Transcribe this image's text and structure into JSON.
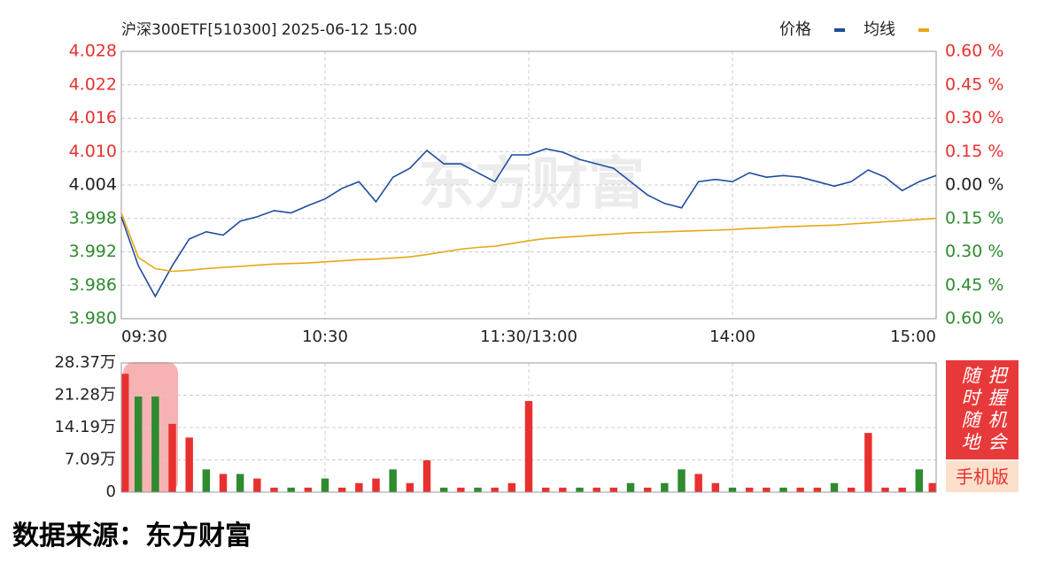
{
  "chart_data": [
    {
      "type": "line",
      "title": "沪深300ETF[510300] 2025-06-12 15:00",
      "watermark": "东方财富",
      "x": [
        0,
        5,
        10,
        15,
        20,
        25,
        30,
        35,
        40,
        45,
        50,
        55,
        60,
        65,
        70,
        75,
        80,
        85,
        90,
        95,
        100,
        105,
        110,
        115,
        120,
        125,
        130,
        135,
        140,
        145,
        150,
        155,
        160,
        165,
        170,
        175,
        180,
        185,
        190,
        195,
        200,
        205,
        210,
        215,
        220,
        225,
        230,
        235,
        240
      ],
      "xlim": [
        0,
        240
      ],
      "xticks": [
        {
          "value": 0,
          "label": "09:30"
        },
        {
          "value": 60,
          "label": "10:30"
        },
        {
          "value": 120,
          "label": "11:30/13:00"
        },
        {
          "value": 180,
          "label": "14:00"
        },
        {
          "value": 240,
          "label": "15:00"
        }
      ],
      "ylim": [
        3.98,
        4.028
      ],
      "yticks": [
        {
          "value": 3.98,
          "label": "3.980"
        },
        3.986,
        3.992,
        3.998,
        4.004,
        {
          "value": 4.01,
          "label": "4.010"
        },
        4.016,
        4.022,
        4.028
      ],
      "y2lim": [
        -0.6,
        0.6
      ],
      "y2ticks": [
        {
          "value": -0.6,
          "label": "0.60 %"
        },
        {
          "value": -0.45,
          "label": "0.45 %"
        },
        {
          "value": -0.3,
          "label": "0.30 %"
        },
        {
          "value": -0.15,
          "label": "0.15 %"
        },
        {
          "value": 0,
          "label": "0.00 %"
        },
        {
          "value": 0.15,
          "label": "0.15 %"
        },
        {
          "value": 0.3,
          "label": "0.30 %"
        },
        {
          "value": 0.45,
          "label": "0.45 %"
        },
        {
          "value": 0.6,
          "label": "0.60 %"
        }
      ],
      "grid": true,
      "legend": "top-right",
      "series": [
        {
          "name": "价格",
          "color": "#1f4c9e",
          "values": [
            3.9983,
            3.9895,
            3.984,
            3.9895,
            3.9943,
            3.9956,
            3.995,
            3.9975,
            3.9983,
            3.9994,
            3.999,
            4.0003,
            4.0015,
            4.0034,
            4.0046,
            4.001,
            4.0054,
            4.007,
            4.0102,
            4.0078,
            4.0078,
            4.0062,
            4.0046,
            4.0094,
            4.0094,
            4.0105,
            4.0099,
            4.0086,
            4.0078,
            4.007,
            4.0046,
            4.0022,
            4.0007,
            3.9999,
            4.0046,
            4.005,
            4.0046,
            4.0062,
            4.0054,
            4.0057,
            4.0054,
            4.0046,
            4.0038,
            4.0046,
            4.0067,
            4.0054,
            4.003,
            4.0046,
            4.0057
          ]
        },
        {
          "name": "均线",
          "color": "#e6a817",
          "values": [
            3.999,
            3.991,
            3.989,
            3.9885,
            3.9887,
            3.989,
            3.9892,
            3.9894,
            3.9896,
            3.9898,
            3.9899,
            3.99,
            3.9902,
            3.9904,
            3.9906,
            3.9907,
            3.9909,
            3.9911,
            3.9915,
            3.992,
            3.9925,
            3.9928,
            3.993,
            3.9935,
            3.994,
            3.9944,
            3.9946,
            3.9948,
            3.995,
            3.9952,
            3.9954,
            3.9955,
            3.9956,
            3.9957,
            3.9958,
            3.9959,
            3.996,
            3.9962,
            3.9963,
            3.9965,
            3.9966,
            3.9967,
            3.9968,
            3.997,
            3.9972,
            3.9974,
            3.9976,
            3.9978,
            3.998
          ]
        }
      ]
    },
    {
      "type": "bar",
      "x": [
        0,
        5,
        10,
        15,
        20,
        25,
        30,
        35,
        40,
        45,
        50,
        55,
        60,
        65,
        70,
        75,
        80,
        85,
        90,
        95,
        100,
        105,
        110,
        115,
        120,
        125,
        130,
        135,
        140,
        145,
        150,
        155,
        160,
        165,
        170,
        175,
        180,
        185,
        190,
        195,
        200,
        205,
        210,
        215,
        220,
        225,
        230,
        235,
        240
      ],
      "xlim": [
        0,
        240
      ],
      "ylim": [
        0,
        28.37
      ],
      "yticks": [
        0,
        {
          "value": 7.09,
          "label": "7.09万"
        },
        {
          "value": 14.19,
          "label": "14.19万"
        },
        {
          "value": 21.28,
          "label": "21.28万"
        },
        {
          "value": 28.37,
          "label": "28.37万"
        }
      ],
      "grid": true,
      "values": [
        26,
        21,
        21,
        15,
        12,
        5,
        4,
        4,
        3,
        1,
        1,
        1,
        3,
        1,
        2,
        3,
        5,
        2,
        7,
        1,
        1,
        1,
        1,
        2,
        20,
        1,
        1,
        1,
        1,
        1,
        2,
        1,
        2,
        5,
        4,
        2,
        1,
        1,
        1,
        1,
        1,
        1,
        2,
        1,
        13,
        1,
        1,
        5,
        2
      ],
      "colors": [
        "#e8312f",
        "#2e8b2e",
        "#2e8b2e",
        "#e8312f",
        "#e8312f",
        "#2e8b2e",
        "#e8312f",
        "#2e8b2e",
        "#e8312f",
        "#e8312f",
        "#2e8b2e",
        "#e8312f",
        "#2e8b2e",
        "#e8312f",
        "#e8312f",
        "#e8312f",
        "#2e8b2e",
        "#e8312f",
        "#e8312f",
        "#2e8b2e",
        "#e8312f",
        "#2e8b2e",
        "#e8312f",
        "#e8312f",
        "#e8312f",
        "#e8312f",
        "#e8312f",
        "#2e8b2e",
        "#e8312f",
        "#e8312f",
        "#2e8b2e",
        "#e8312f",
        "#2e8b2e",
        "#2e8b2e",
        "#e8312f",
        "#e8312f",
        "#2e8b2e",
        "#e8312f",
        "#e8312f",
        "#2e8b2e",
        "#e8312f",
        "#e8312f",
        "#2e8b2e",
        "#e8312f",
        "#e8312f",
        "#e8312f",
        "#e8312f",
        "#2e8b2e",
        "#e8312f"
      ]
    }
  ],
  "promo": {
    "columns": [
      "随时随地",
      "把握机会"
    ],
    "button": "手机版"
  },
  "source": "数据来源：东方财富"
}
